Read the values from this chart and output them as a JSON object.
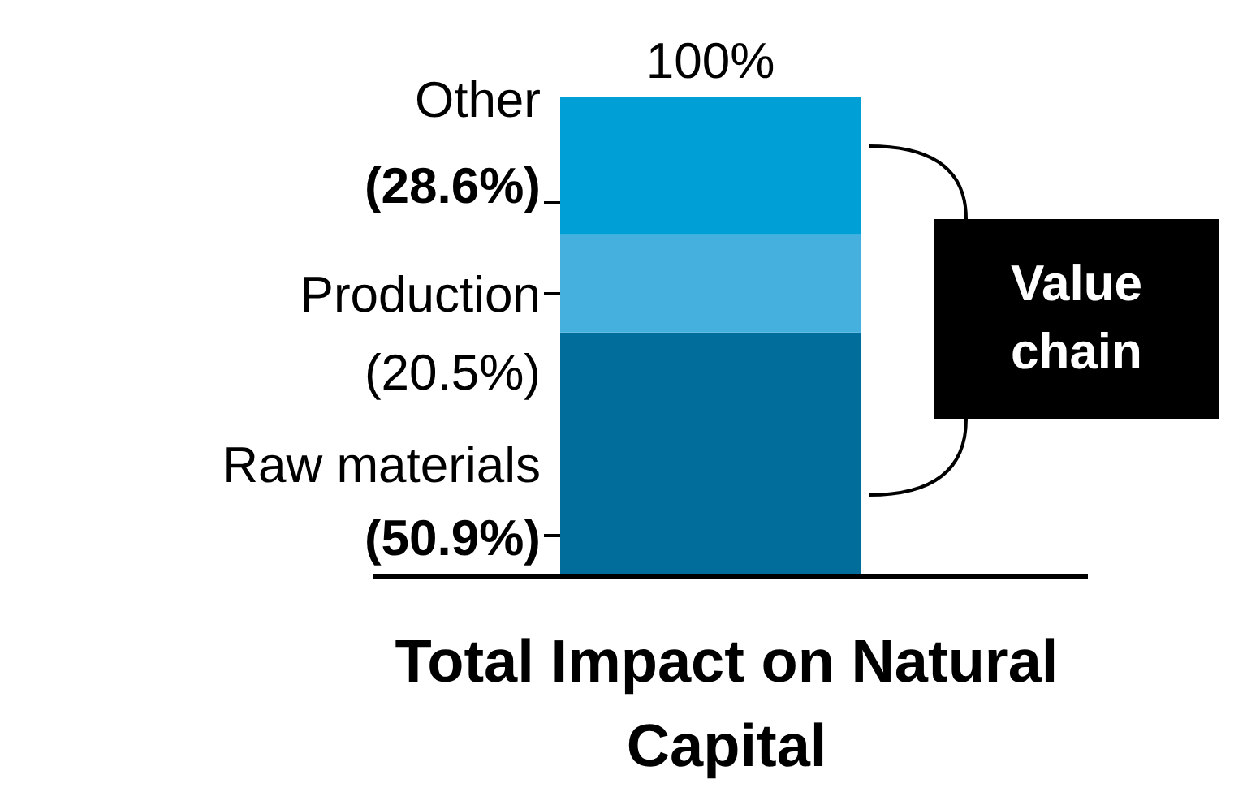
{
  "chart_data": {
    "type": "bar",
    "stacked": true,
    "categories": [
      "Total Impact on Natural Capital"
    ],
    "series": [
      {
        "name": "Raw materials",
        "color": "#006d9b",
        "values": [
          50.9
        ],
        "value_labels": [
          "(50.9%)"
        ]
      },
      {
        "name": "Production",
        "color": "#45b0de",
        "values": [
          20.5
        ],
        "value_labels": [
          "(20.5%)"
        ]
      },
      {
        "name": "Other",
        "color": "#00a0d6",
        "values": [
          28.6
        ],
        "value_labels": [
          "(28.6%)"
        ]
      }
    ],
    "totals": [
      "100%"
    ],
    "annotations": [
      "Value chain"
    ]
  }
}
